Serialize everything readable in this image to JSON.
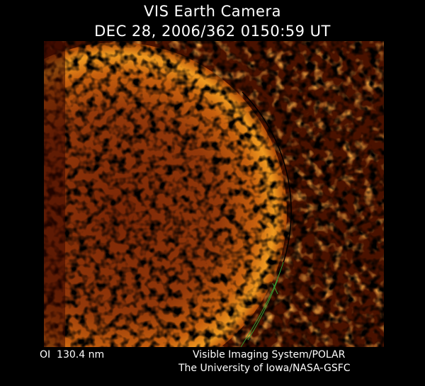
{
  "header": {
    "title": "VIS Earth Camera",
    "timestamp": "DEC 28, 2006/362 0150:59 UT"
  },
  "footer": {
    "filter": "OI  130.4 nm",
    "instrument": "Visible Imaging System/POLAR",
    "institution": "The University of Iowa/NASA-GSFC"
  }
}
